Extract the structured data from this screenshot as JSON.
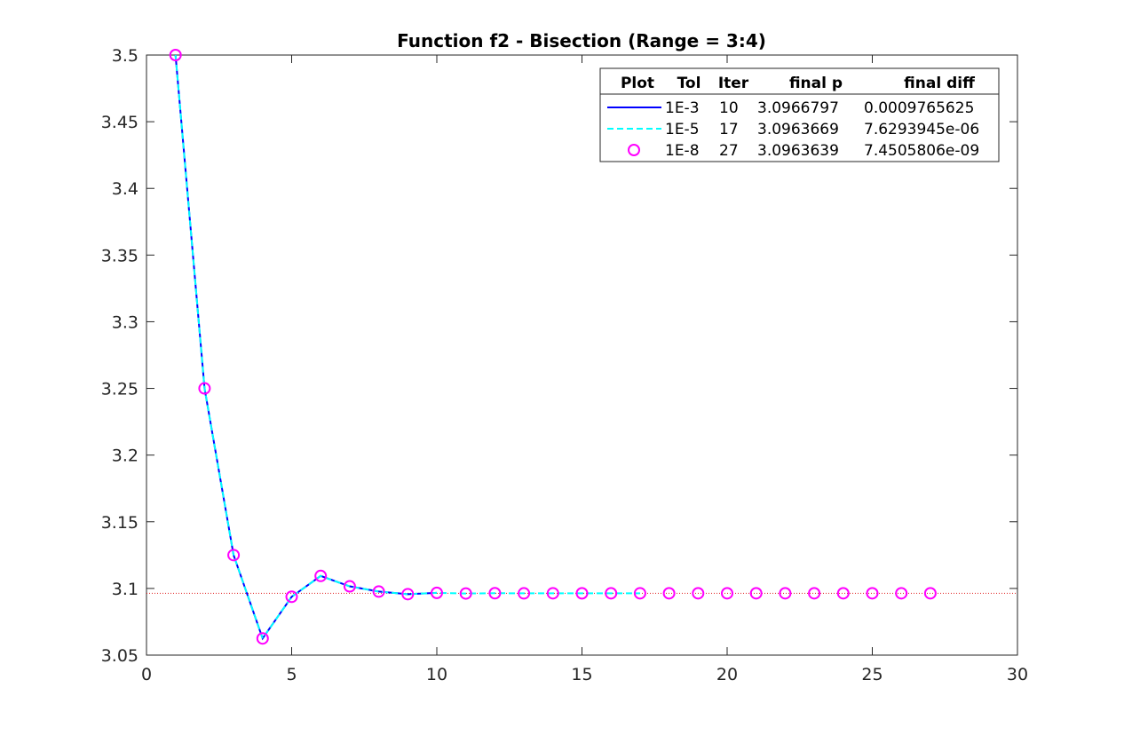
{
  "chart_data": {
    "type": "line",
    "title": "Function f2 - Bisection (Range = 3:4)",
    "xlabel": "",
    "ylabel": "",
    "xlim": [
      0,
      30
    ],
    "ylim": [
      3.05,
      3.5
    ],
    "xticks": [
      0,
      5,
      10,
      15,
      20,
      25,
      30
    ],
    "yticks": [
      3.05,
      3.1,
      3.15,
      3.2,
      3.25,
      3.3,
      3.35,
      3.4,
      3.45,
      3.5
    ],
    "xtick_labels": [
      "0",
      "5",
      "10",
      "15",
      "20",
      "25",
      "30"
    ],
    "ytick_labels": [
      "3.05",
      "3.1",
      "3.15",
      "3.2",
      "3.25",
      "3.3",
      "3.35",
      "3.4",
      "3.45",
      "3.5"
    ],
    "grid": false,
    "reference_line": {
      "y": 3.0963639,
      "color": "#e02020",
      "style": "dotted"
    },
    "series": [
      {
        "style": "solid",
        "color": "#0000ff",
        "x": [
          1,
          2,
          3,
          4,
          5,
          6,
          7,
          8,
          9,
          10
        ],
        "y": [
          3.5,
          3.25,
          3.125,
          3.0625,
          3.09375,
          3.109375,
          3.1015625,
          3.0976563,
          3.0957031,
          3.0966797
        ]
      },
      {
        "style": "dashed",
        "color": "#00ffff",
        "x": [
          1,
          2,
          3,
          4,
          5,
          6,
          7,
          8,
          9,
          10,
          11,
          12,
          13,
          14,
          15,
          16,
          17
        ],
        "y": [
          3.5,
          3.25,
          3.125,
          3.0625,
          3.09375,
          3.109375,
          3.1015625,
          3.0976563,
          3.0957031,
          3.0966797,
          3.0961914,
          3.0964355,
          3.0963135,
          3.0963745,
          3.096344,
          3.0963593,
          3.0963669
        ]
      },
      {
        "style": "markers",
        "marker": "circle",
        "color": "#ff00ff",
        "x": [
          1,
          2,
          3,
          4,
          5,
          6,
          7,
          8,
          9,
          10,
          11,
          12,
          13,
          14,
          15,
          16,
          17,
          18,
          19,
          20,
          21,
          22,
          23,
          24,
          25,
          26,
          27
        ],
        "y": [
          3.5,
          3.25,
          3.125,
          3.0625,
          3.09375,
          3.109375,
          3.1015625,
          3.0976563,
          3.0957031,
          3.0966797,
          3.0961914,
          3.0964355,
          3.0963135,
          3.0963745,
          3.096344,
          3.0963593,
          3.0963669,
          3.0963631,
          3.096365,
          3.0963641,
          3.0963636,
          3.0963638,
          3.096364,
          3.0963639,
          3.0963639,
          3.0963639,
          3.0963639
        ]
      }
    ],
    "legend": {
      "position": "top-right",
      "headers": [
        "Plot",
        "Tol",
        "Iter",
        "final p",
        "final diff"
      ],
      "rows": [
        {
          "tol": "1E-3",
          "iter": "10",
          "p": "3.0966797",
          "diff": "0.0009765625"
        },
        {
          "tol": "1E-5",
          "iter": "17",
          "p": "3.0963669",
          "diff": "7.6293945e-06"
        },
        {
          "tol": "1E-8",
          "iter": "27",
          "p": "3.0963639",
          "diff": "7.4505806e-09"
        }
      ]
    }
  }
}
